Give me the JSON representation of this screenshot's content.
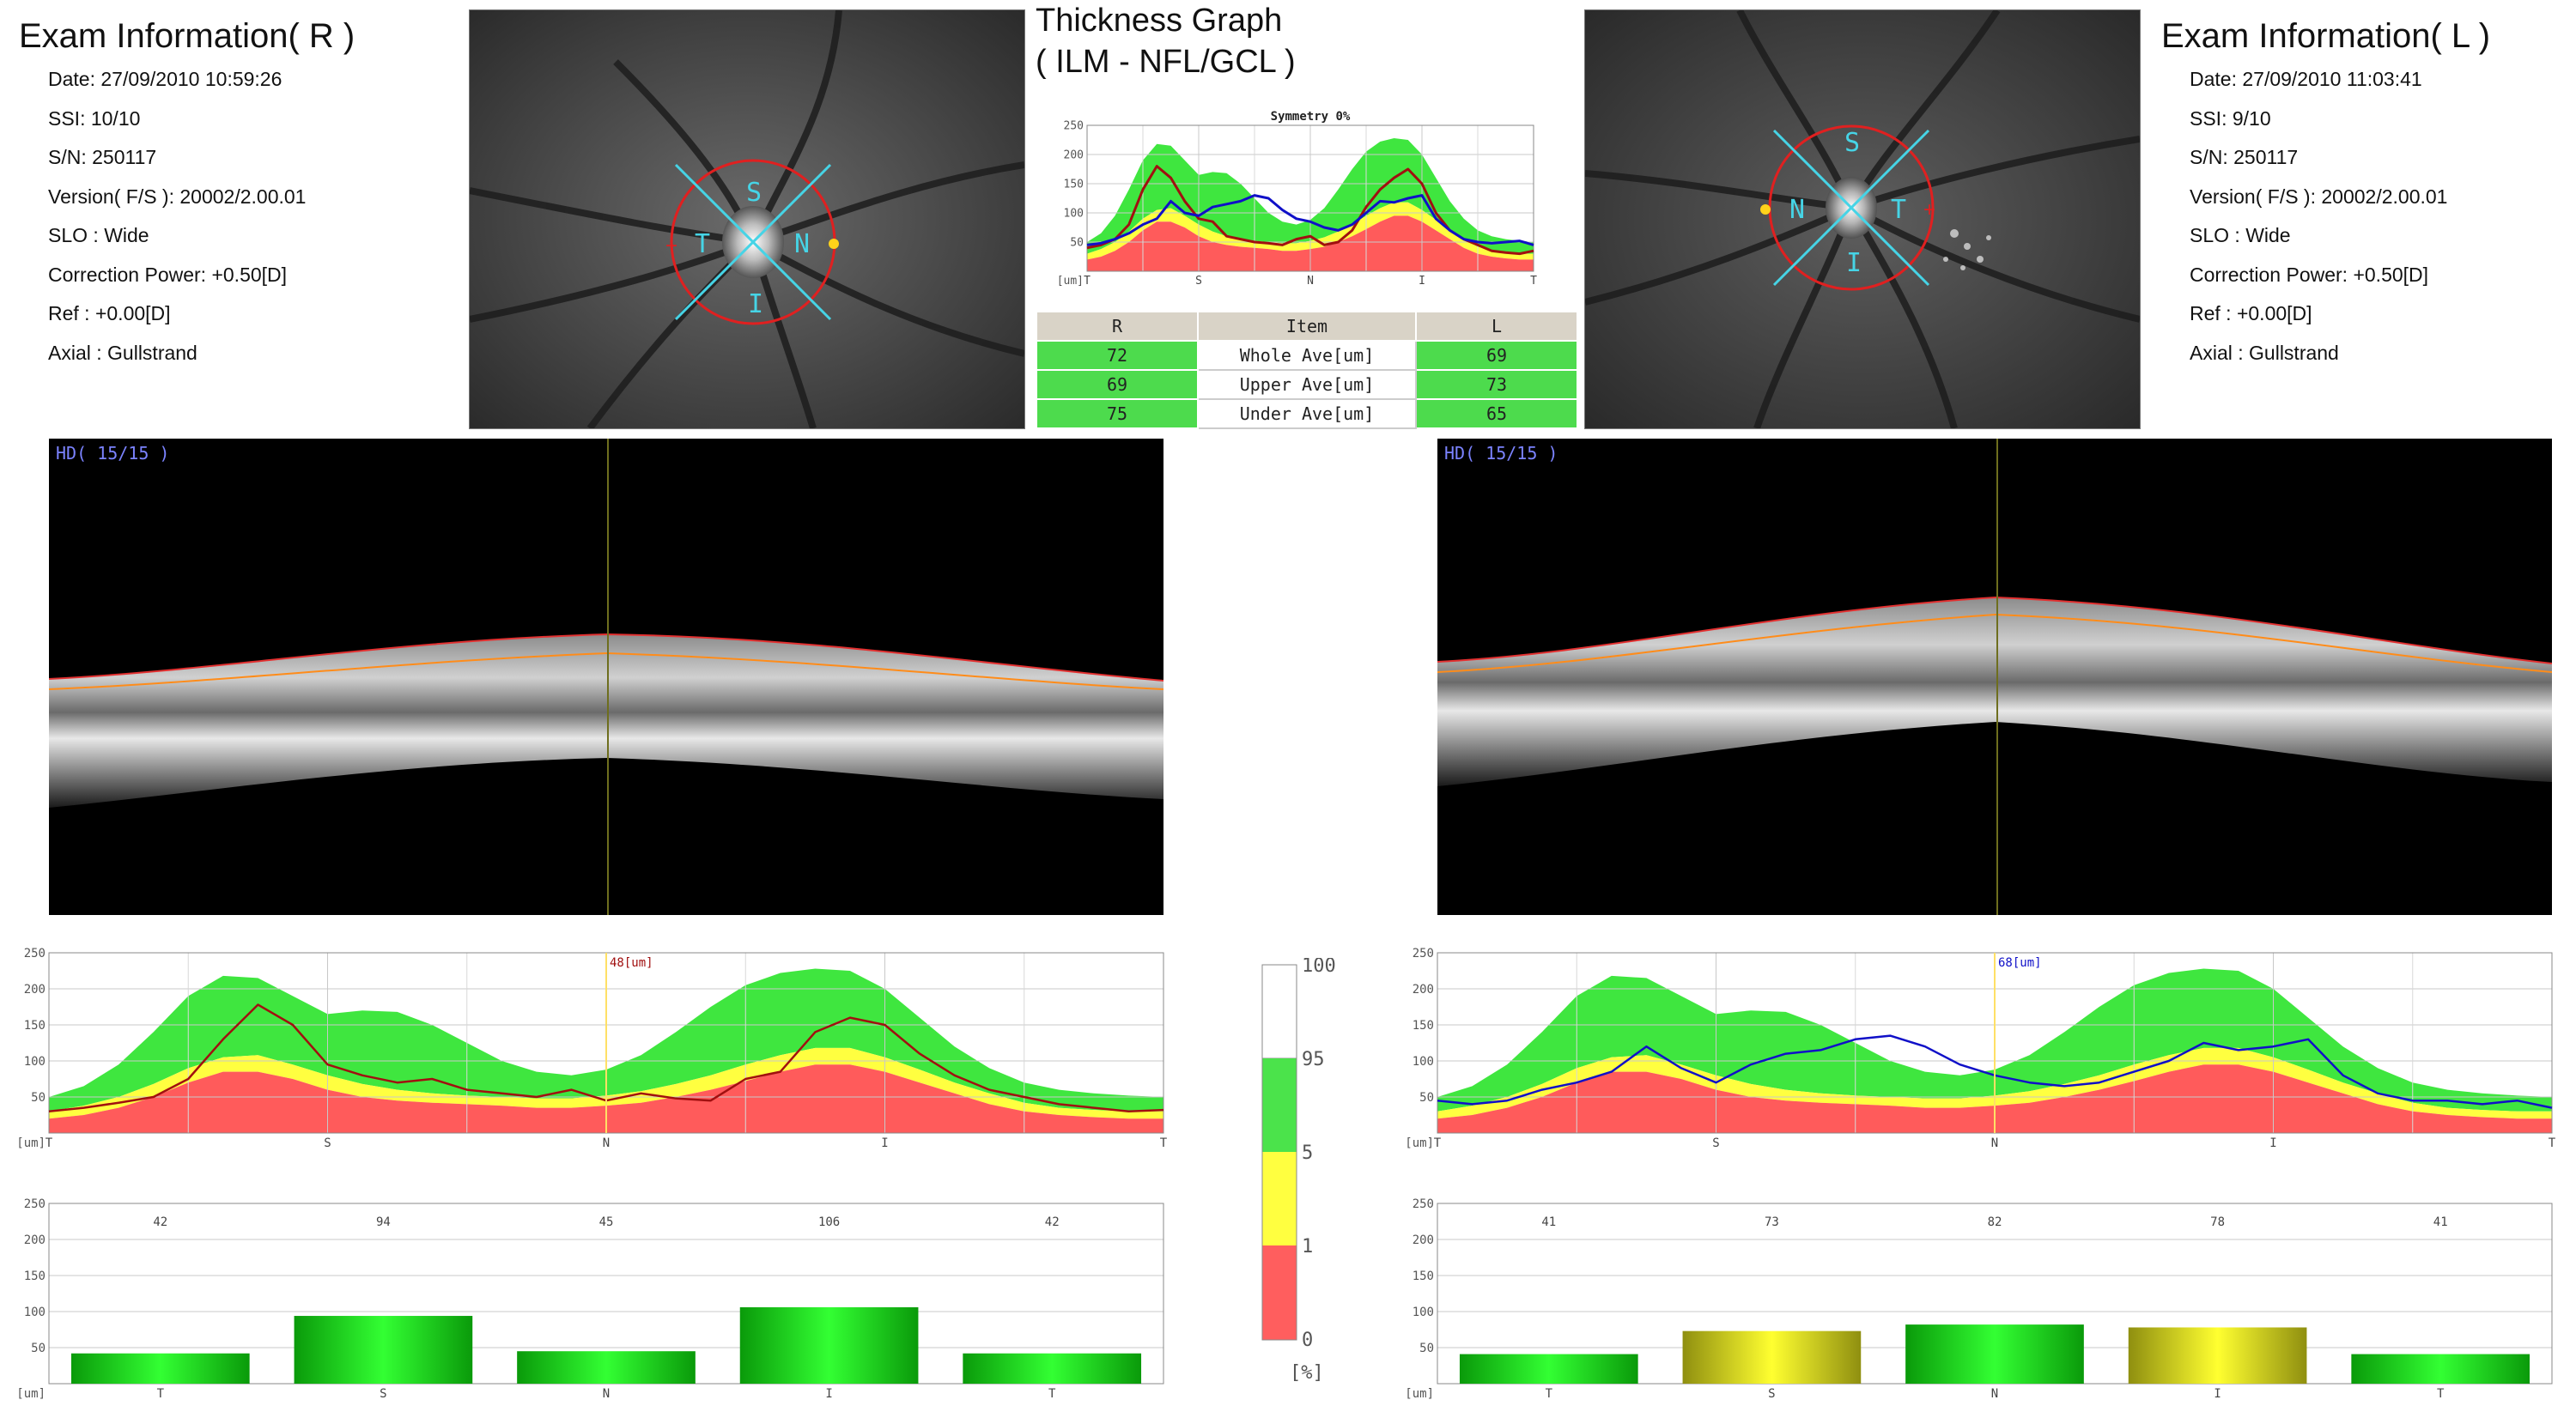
{
  "exam_right": {
    "title": "Exam Information( R )",
    "date": "Date: 27/09/2010 10:59:26",
    "ssi": "SSI: 10/10",
    "sn": "S/N: 250117",
    "version": "Version( F/S ): 20002/2.00.01",
    "slo": "SLO : Wide",
    "correction_power": "Correction Power: +0.50[D]",
    "ref": "Ref : +0.00[D]",
    "axial": "Axial : Gullstrand"
  },
  "exam_left": {
    "title": "Exam Information( L )",
    "date": "Date: 27/09/2010 11:03:41",
    "ssi": "SSI:  9/10",
    "sn": "S/N: 250117",
    "version": "Version( F/S ): 20002/2.00.01",
    "slo": "SLO : Wide",
    "correction_power": "Correction Power: +0.50[D]",
    "ref": "Ref : +0.00[D]",
    "axial": "Axial : Gullstrand"
  },
  "fundus_right_labels": {
    "s": "S",
    "t": "T",
    "n": "N",
    "i": "I"
  },
  "fundus_left_labels": {
    "s": "S",
    "t": "T",
    "n": "N",
    "i": "I"
  },
  "thickness_graph": {
    "title_line1": "Thickness Graph",
    "title_line2": "( ILM - NFL/GCL )",
    "symmetry": "Symmetry 0%",
    "table": {
      "headers": [
        "R",
        "Item",
        "L"
      ],
      "rows": [
        {
          "r": "72",
          "item": "Whole Ave[um]",
          "l": "69"
        },
        {
          "r": "69",
          "item": "Upper Ave[um]",
          "l": "73"
        },
        {
          "r": "75",
          "item": "Under Ave[um]",
          "l": "65"
        }
      ]
    }
  },
  "oct_right": {
    "label": "HD( 15/15 )"
  },
  "oct_left": {
    "label": "HD( 15/15 )"
  },
  "colors": {
    "red_band": "#ff5b5b",
    "yellow_band": "#ffff40",
    "green_band": "#3fe63f",
    "right_eye_line": "#a11010",
    "left_eye_line": "#1010c8",
    "cursor_line": "#ffe066"
  },
  "legend": {
    "ticks": [
      "100",
      "95",
      "5",
      "1",
      "0"
    ],
    "unit": "[%]",
    "colors": [
      "#ffffff",
      "#4be34b",
      "#ffff40",
      "#ff5e5e"
    ]
  },
  "chart_data": [
    {
      "id": "symmetry",
      "type": "line",
      "title": "Symmetry 0%",
      "unit_label": "[um]",
      "categories": [
        "T",
        "S",
        "N",
        "I",
        "T"
      ],
      "ylim": [
        0,
        250
      ],
      "yticks": [
        50,
        100,
        150,
        200,
        250
      ],
      "x": [
        0,
        8,
        16,
        24,
        32,
        40,
        48,
        56,
        64,
        72,
        80,
        88,
        96,
        104,
        112,
        120,
        128,
        136,
        144,
        152,
        160,
        168,
        176,
        184,
        192,
        200,
        208,
        216,
        224,
        232,
        240,
        248,
        256
      ],
      "bands": {
        "p1": [
          20,
          25,
          35,
          50,
          70,
          85,
          85,
          75,
          60,
          50,
          45,
          42,
          40,
          38,
          35,
          35,
          38,
          42,
          50,
          60,
          72,
          85,
          95,
          95,
          85,
          70,
          55,
          40,
          30,
          25,
          22,
          20,
          20
        ],
        "p5": [
          30,
          38,
          50,
          68,
          90,
          105,
          108,
          95,
          80,
          68,
          60,
          55,
          52,
          50,
          48,
          48,
          52,
          58,
          68,
          80,
          95,
          108,
          118,
          118,
          105,
          88,
          70,
          55,
          42,
          35,
          32,
          30,
          30
        ],
        "p95": [
          50,
          65,
          95,
          140,
          190,
          218,
          215,
          190,
          165,
          170,
          168,
          150,
          125,
          100,
          85,
          80,
          88,
          108,
          140,
          175,
          205,
          222,
          228,
          225,
          200,
          160,
          120,
          90,
          70,
          60,
          55,
          52,
          50
        ]
      },
      "series": [
        {
          "name": "R",
          "values": [
            40,
            45,
            55,
            80,
            140,
            180,
            160,
            120,
            90,
            85,
            60,
            55,
            50,
            48,
            45,
            55,
            60,
            45,
            50,
            70,
            110,
            140,
            160,
            175,
            150,
            100,
            70,
            55,
            45,
            35,
            32,
            30,
            35
          ]
        },
        {
          "name": "L",
          "values": [
            45,
            48,
            55,
            65,
            80,
            90,
            120,
            100,
            95,
            110,
            115,
            120,
            130,
            125,
            105,
            90,
            85,
            75,
            70,
            80,
            100,
            120,
            118,
            125,
            130,
            90,
            70,
            55,
            50,
            48,
            50,
            52,
            45
          ]
        }
      ]
    },
    {
      "id": "right_tsnit",
      "type": "line",
      "unit_label": "[um]",
      "categories": [
        "T",
        "S",
        "N",
        "I",
        "T"
      ],
      "ylim": [
        0,
        250
      ],
      "yticks": [
        50,
        100,
        150,
        200,
        250
      ],
      "cursor_label": "48[um]",
      "x": [
        0,
        8,
        16,
        24,
        32,
        40,
        48,
        56,
        64,
        72,
        80,
        88,
        96,
        104,
        112,
        120,
        128,
        136,
        144,
        152,
        160,
        168,
        176,
        184,
        192,
        200,
        208,
        216,
        224,
        232,
        240,
        248,
        256
      ],
      "bands": {
        "p1": [
          20,
          25,
          35,
          50,
          70,
          85,
          85,
          75,
          60,
          50,
          45,
          42,
          40,
          38,
          35,
          35,
          38,
          42,
          50,
          60,
          72,
          85,
          95,
          95,
          85,
          70,
          55,
          40,
          30,
          25,
          22,
          20,
          20
        ],
        "p5": [
          30,
          38,
          50,
          68,
          90,
          105,
          108,
          95,
          80,
          68,
          60,
          55,
          52,
          50,
          48,
          48,
          52,
          58,
          68,
          80,
          95,
          108,
          118,
          118,
          105,
          88,
          70,
          55,
          42,
          35,
          32,
          30,
          30
        ],
        "p95": [
          50,
          65,
          95,
          140,
          190,
          218,
          215,
          190,
          165,
          170,
          168,
          150,
          125,
          100,
          85,
          80,
          88,
          108,
          140,
          175,
          205,
          222,
          228,
          225,
          200,
          160,
          120,
          90,
          70,
          60,
          55,
          52,
          50
        ]
      },
      "series": [
        {
          "name": "R",
          "values": [
            30,
            35,
            42,
            50,
            75,
            130,
            178,
            150,
            95,
            80,
            70,
            75,
            60,
            55,
            50,
            60,
            45,
            55,
            48,
            45,
            75,
            85,
            140,
            160,
            150,
            110,
            80,
            60,
            50,
            40,
            35,
            30,
            32
          ]
        }
      ]
    },
    {
      "id": "left_tsnit",
      "type": "line",
      "unit_label": "[um]",
      "categories": [
        "T",
        "S",
        "N",
        "I",
        "T"
      ],
      "ylim": [
        0,
        250
      ],
      "yticks": [
        50,
        100,
        150,
        200,
        250
      ],
      "cursor_label": "68[um]",
      "x": [
        0,
        8,
        16,
        24,
        32,
        40,
        48,
        56,
        64,
        72,
        80,
        88,
        96,
        104,
        112,
        120,
        128,
        136,
        144,
        152,
        160,
        168,
        176,
        184,
        192,
        200,
        208,
        216,
        224,
        232,
        240,
        248,
        256
      ],
      "bands": {
        "p1": [
          20,
          25,
          35,
          50,
          70,
          85,
          85,
          75,
          60,
          50,
          45,
          42,
          40,
          38,
          35,
          35,
          38,
          42,
          50,
          60,
          72,
          85,
          95,
          95,
          85,
          70,
          55,
          40,
          30,
          25,
          22,
          20,
          20
        ],
        "p5": [
          30,
          38,
          50,
          68,
          90,
          105,
          108,
          95,
          80,
          68,
          60,
          55,
          52,
          50,
          48,
          48,
          52,
          58,
          68,
          80,
          95,
          108,
          118,
          118,
          105,
          88,
          70,
          55,
          42,
          35,
          32,
          30,
          30
        ],
        "p95": [
          50,
          65,
          95,
          140,
          190,
          218,
          215,
          190,
          165,
          170,
          168,
          150,
          125,
          100,
          85,
          80,
          88,
          108,
          140,
          175,
          205,
          222,
          228,
          225,
          200,
          160,
          120,
          90,
          70,
          60,
          55,
          52,
          50
        ]
      },
      "series": [
        {
          "name": "L",
          "values": [
            45,
            40,
            45,
            60,
            70,
            85,
            120,
            90,
            70,
            95,
            110,
            115,
            130,
            135,
            120,
            95,
            80,
            70,
            65,
            70,
            85,
            100,
            125,
            115,
            120,
            130,
            80,
            55,
            45,
            45,
            40,
            45,
            35
          ]
        }
      ]
    },
    {
      "id": "right_sector",
      "type": "bar",
      "unit_label": "[um]",
      "categories": [
        "T",
        "S",
        "N",
        "I",
        "T"
      ],
      "values": [
        42,
        94,
        45,
        106,
        42
      ],
      "bar_colors": [
        "green",
        "green",
        "green",
        "green",
        "green"
      ],
      "ylim": [
        0,
        250
      ],
      "yticks": [
        50,
        100,
        150,
        200,
        250
      ]
    },
    {
      "id": "left_sector",
      "type": "bar",
      "unit_label": "[um]",
      "categories": [
        "T",
        "S",
        "N",
        "I",
        "T"
      ],
      "values": [
        41,
        73,
        82,
        78,
        41
      ],
      "bar_colors": [
        "green",
        "yellow",
        "green",
        "yellow",
        "green"
      ],
      "ylim": [
        0,
        250
      ],
      "yticks": [
        50,
        100,
        150,
        200,
        250
      ]
    }
  ]
}
